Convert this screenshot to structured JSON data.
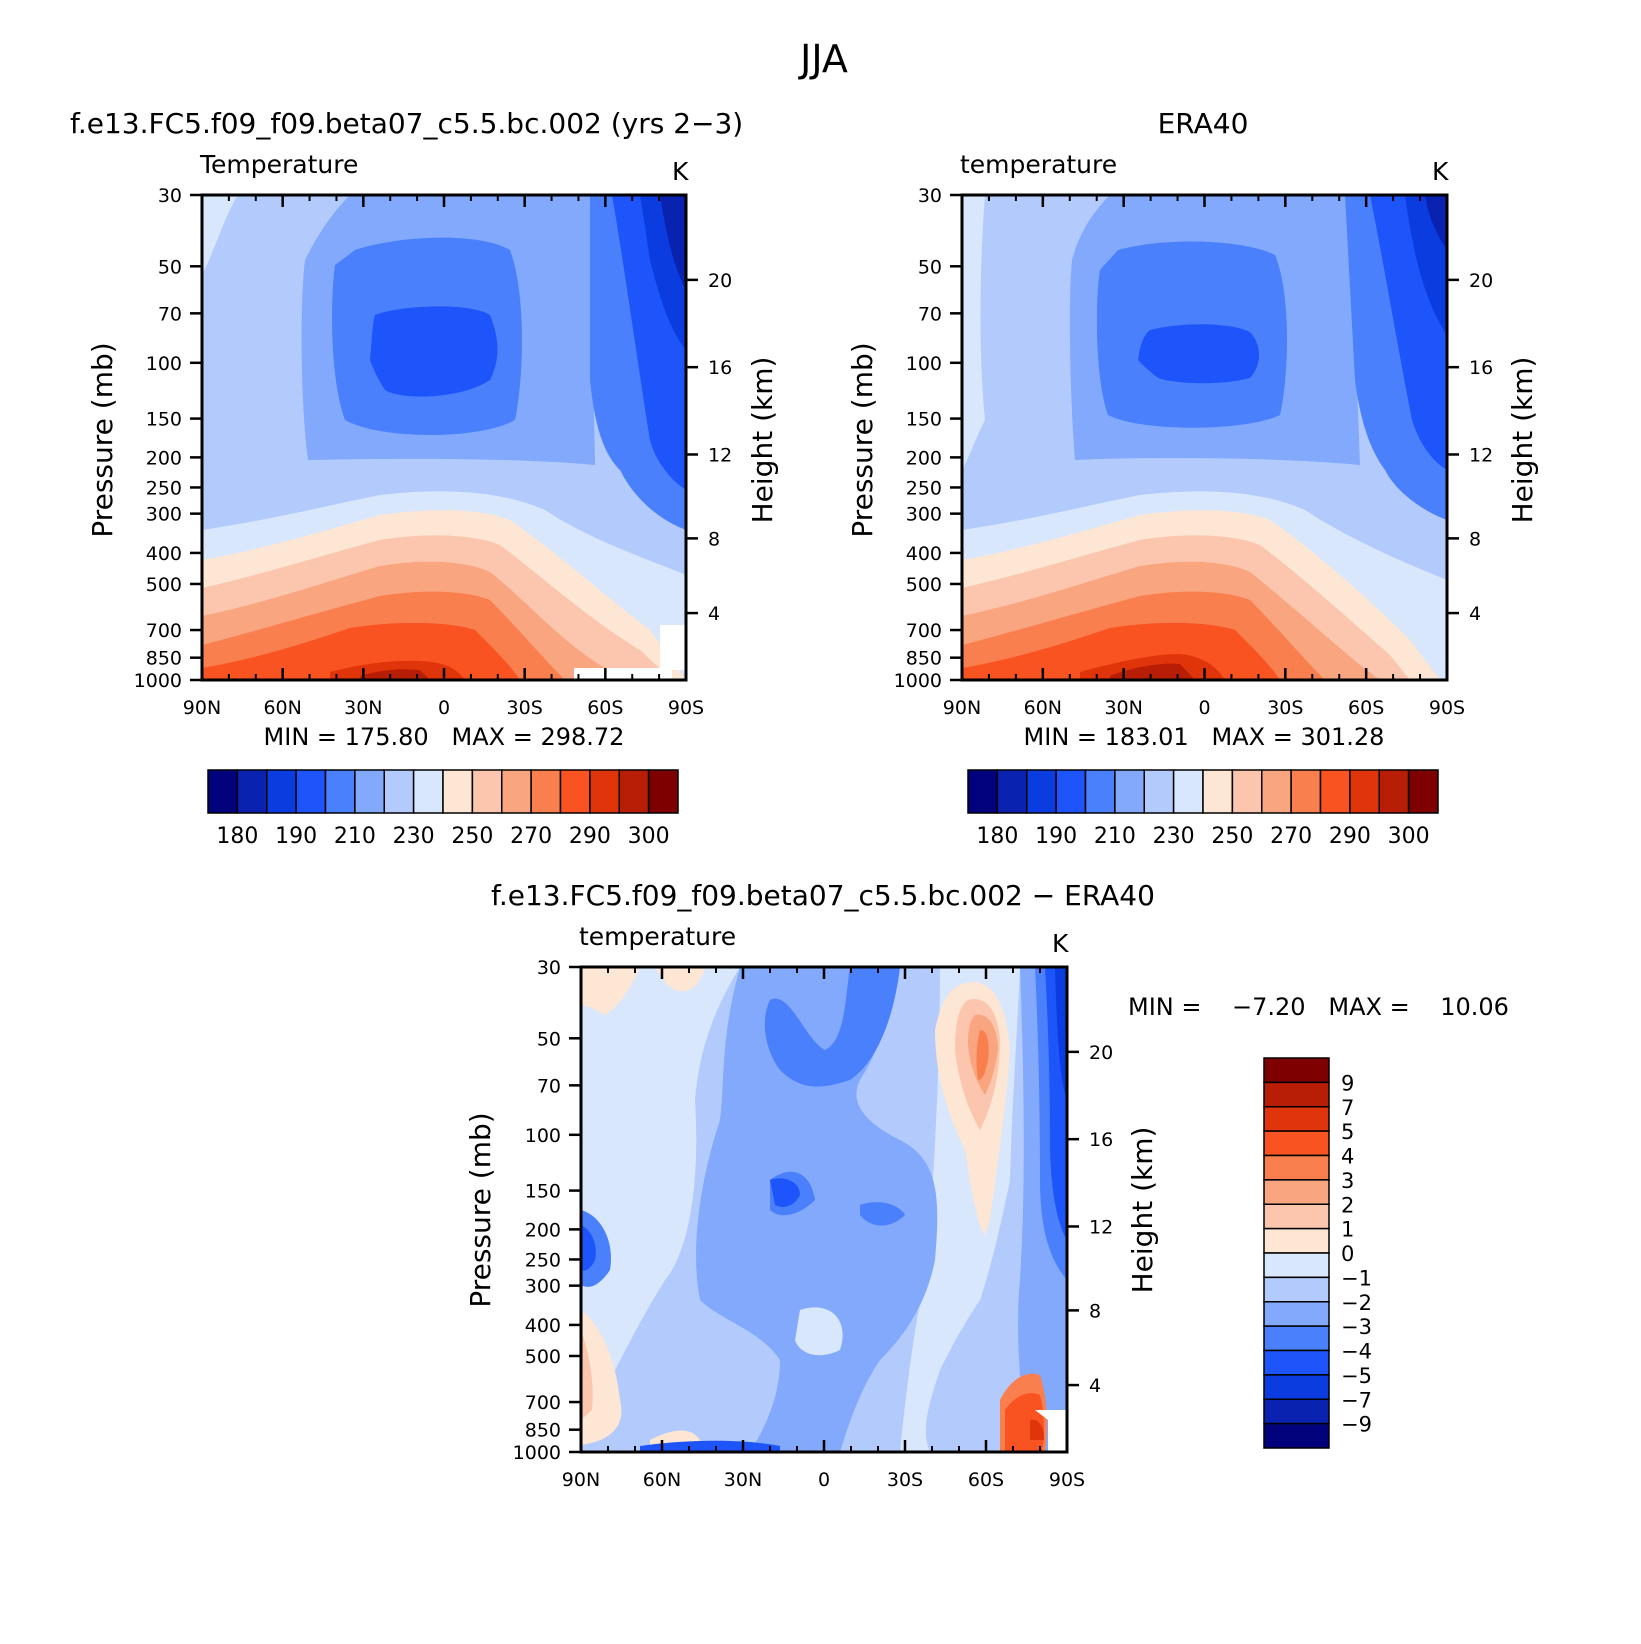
{
  "figure": {
    "title": "JJA"
  },
  "chart_data": [
    {
      "type": "heatmap",
      "title": "f.e13.FC5.f09_f09.beta07_c5.5.bc.002 (yrs 2−3)",
      "subtitle_left": "Temperature",
      "units": "K",
      "ylabel": "Pressure (mb)",
      "ylabel_right": "Height (km)",
      "x_ticks": [
        "90N",
        "60N",
        "30N",
        "0",
        "30S",
        "60S",
        "90S"
      ],
      "y_ticks": [
        "30",
        "50",
        "70",
        "100",
        "150",
        "200",
        "250",
        "300",
        "400",
        "500",
        "700",
        "850",
        "1000"
      ],
      "height_ticks": [
        "20",
        "16",
        "12",
        "8",
        "4"
      ],
      "stats": "MIN = 175.80   MAX = 298.72",
      "min": 175.8,
      "max": 298.72,
      "colorbar": {
        "labels": [
          "180",
          "190",
          "210",
          "230",
          "250",
          "270",
          "290",
          "300"
        ],
        "colors": [
          "#02037c",
          "#0a22b0",
          "#0a3ce0",
          "#1e55fb",
          "#4a80fc",
          "#82a9fc",
          "#b3cbfc",
          "#d8e7fb",
          "#fde6d3",
          "#fbc6ad",
          "#f9a57f",
          "#f97f4f",
          "#f95322",
          "#e0340a",
          "#b81e05",
          "#7f0000"
        ]
      },
      "bands": [
        {
          "color": "#fbc6ad"
        },
        {
          "color": "#f9a57f"
        },
        {
          "color": "#f97f4f"
        },
        {
          "color": "#f95322"
        },
        {
          "color": "#e0340a"
        },
        {
          "color": "#b81e05"
        }
      ]
    },
    {
      "type": "heatmap",
      "title": "ERA40",
      "subtitle_left": "temperature",
      "units": "K",
      "ylabel": "Pressure (mb)",
      "ylabel_right": "Height (km)",
      "x_ticks": [
        "90N",
        "60N",
        "30N",
        "0",
        "30S",
        "60S",
        "90S"
      ],
      "y_ticks": [
        "30",
        "50",
        "70",
        "100",
        "150",
        "200",
        "250",
        "300",
        "400",
        "500",
        "700",
        "850",
        "1000"
      ],
      "height_ticks": [
        "20",
        "16",
        "12",
        "8",
        "4"
      ],
      "stats": "MIN = 183.01   MAX = 301.28",
      "min": 183.01,
      "max": 301.28,
      "colorbar": {
        "labels": [
          "180",
          "190",
          "210",
          "230",
          "250",
          "270",
          "290",
          "300"
        ],
        "colors": [
          "#02037c",
          "#0a22b0",
          "#0a3ce0",
          "#1e55fb",
          "#4a80fc",
          "#82a9fc",
          "#b3cbfc",
          "#d8e7fb",
          "#fde6d3",
          "#fbc6ad",
          "#f9a57f",
          "#f97f4f",
          "#f95322",
          "#e0340a",
          "#b81e05",
          "#7f0000"
        ]
      }
    },
    {
      "type": "heatmap",
      "title": "f.e13.FC5.f09_f09.beta07_c5.5.bc.002 − ERA40",
      "subtitle_left": "temperature",
      "units": "K",
      "ylabel": "Pressure (mb)",
      "ylabel_right": "Height (km)",
      "x_ticks": [
        "90N",
        "60N",
        "30N",
        "0",
        "30S",
        "60S",
        "90S"
      ],
      "y_ticks": [
        "30",
        "50",
        "70",
        "100",
        "150",
        "200",
        "250",
        "300",
        "400",
        "500",
        "700",
        "850",
        "1000"
      ],
      "height_ticks": [
        "20",
        "16",
        "12",
        "8",
        "4"
      ],
      "stats": "MIN =    −7.20   MAX =    10.06",
      "min": -7.2,
      "max": 10.06,
      "colorbar": {
        "labels": [
          "9",
          "7",
          "5",
          "4",
          "3",
          "2",
          "1",
          "0",
          "−1",
          "−2",
          "−3",
          "−4",
          "−5",
          "−7",
          "−9"
        ],
        "colors": [
          "#7f0000",
          "#b81e05",
          "#e0340a",
          "#f95322",
          "#f97f4f",
          "#f9a57f",
          "#fbc6ad",
          "#fde6d3",
          "#d8e7fb",
          "#b3cbfc",
          "#82a9fc",
          "#4a80fc",
          "#1e55fb",
          "#0a3ce0",
          "#0a22b0",
          "#02037c"
        ]
      }
    }
  ]
}
